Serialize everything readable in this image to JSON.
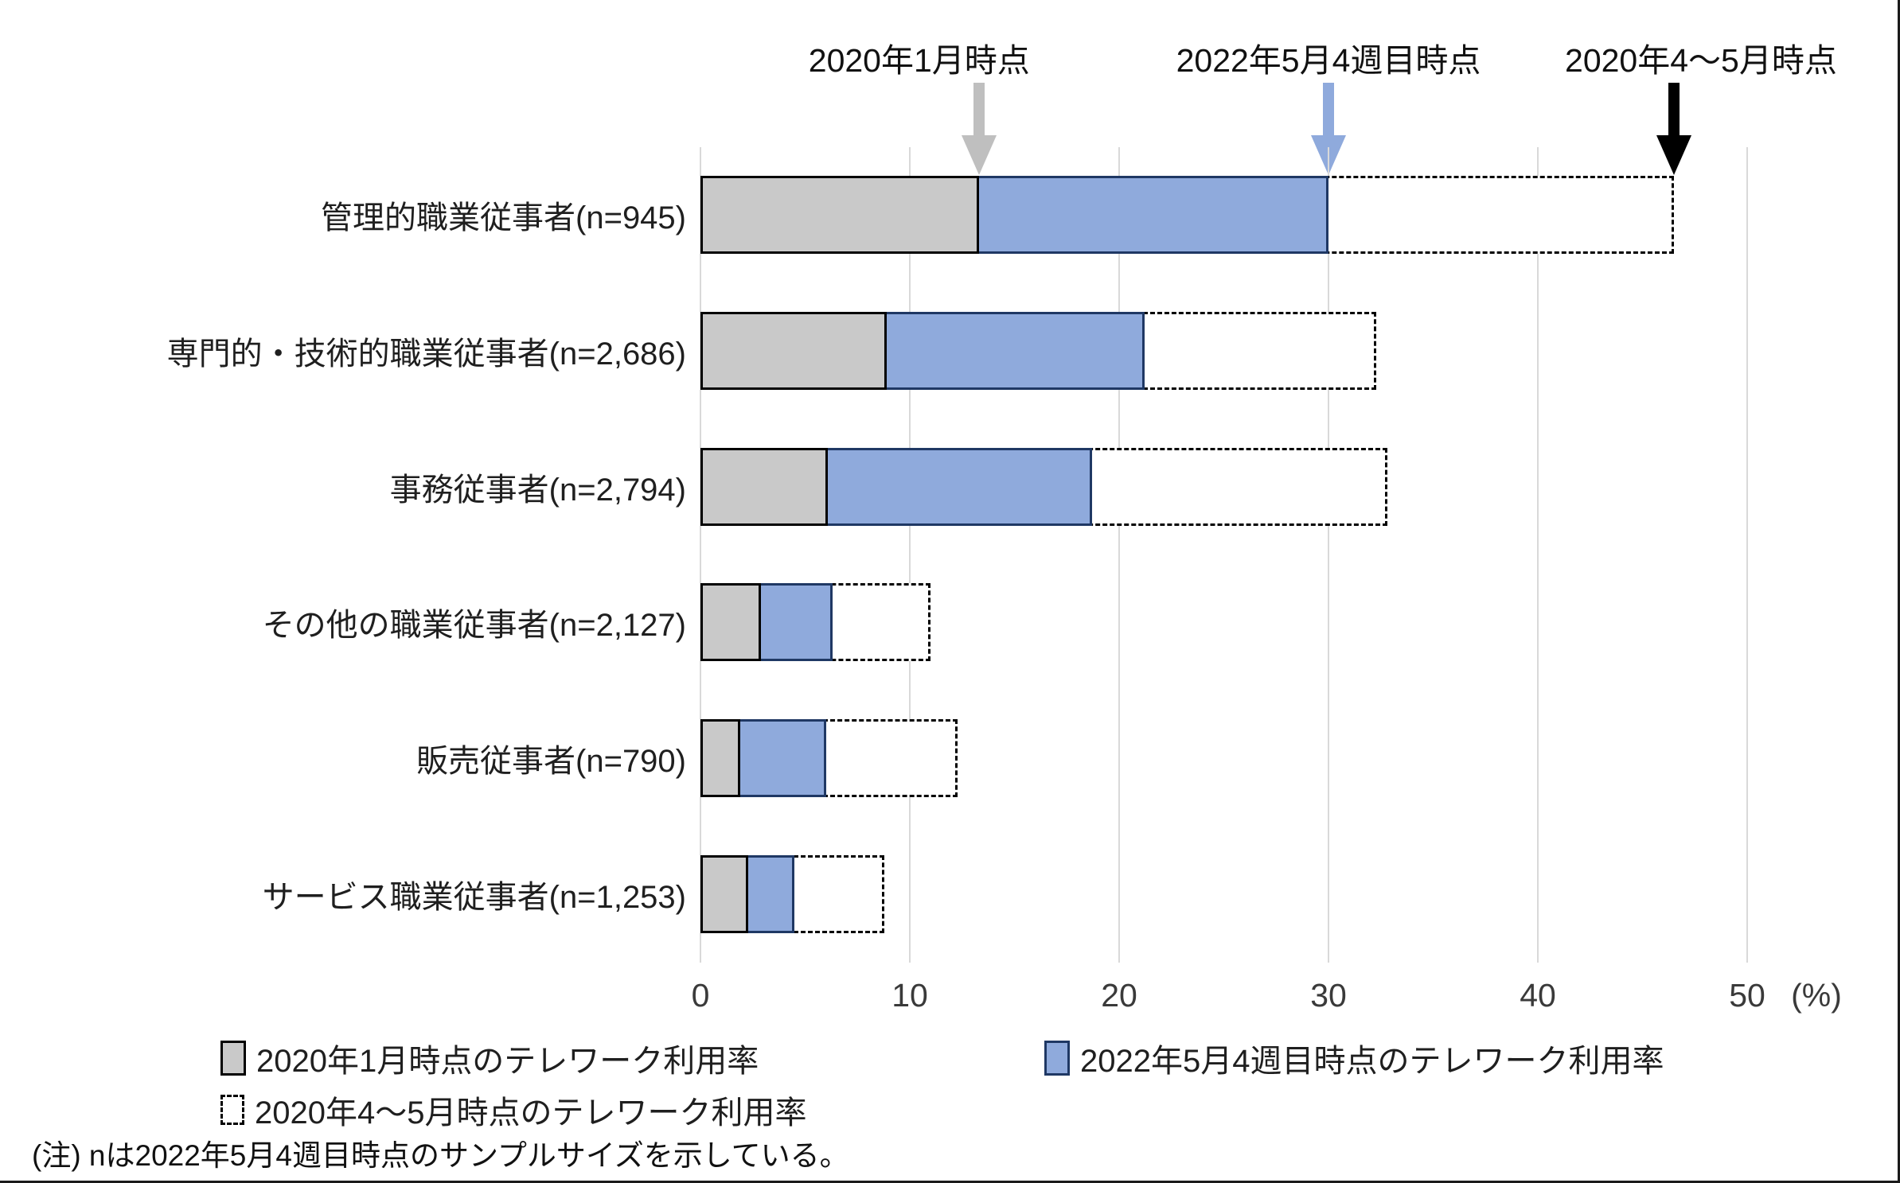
{
  "chart_data": {
    "type": "bar",
    "orientation": "horizontal",
    "title": "",
    "categories": [
      "管理的職業従事者(n=945)",
      "専門的・技術的職業従事者(n=2,686)",
      "事務従事者(n=2,794)",
      "その他の職業従事者(n=2,127)",
      "販売従事者(n=790)",
      "サービス職業従事者(n=1,253)"
    ],
    "series": [
      {
        "key": "jan2020",
        "name": "2020年1月時点のテレワーク利用率",
        "style": "solid",
        "fill": "#C9C9C9",
        "border": "#000000",
        "values": [
          13.3,
          8.9,
          6.1,
          2.9,
          1.9,
          2.3
        ]
      },
      {
        "key": "may2022w4",
        "name": "2022年5月4週目時点のテレワーク利用率",
        "style": "solid",
        "fill": "#8FAADC",
        "border": "#1F3864",
        "values": [
          30.0,
          21.2,
          18.7,
          6.3,
          6.0,
          4.5
        ]
      },
      {
        "key": "aprmay2020",
        "name": "2020年4〜5月時点のテレワーク利用率",
        "style": "dashed-outline",
        "fill": "#FFFFFF",
        "border": "#000000",
        "values": [
          46.5,
          32.3,
          32.8,
          11.0,
          12.3,
          8.8
        ]
      }
    ],
    "x_axis": {
      "ticks": [
        0,
        10,
        20,
        30,
        40,
        50
      ],
      "unit": "(%)",
      "max": 50,
      "grid": true
    },
    "legend_position": "bottom",
    "annotations": [
      {
        "label": "2020年1月時点",
        "x": 13.3,
        "color": "#BFBFBF"
      },
      {
        "label": "2022年5月4週目時点",
        "x": 30.0,
        "color": "#8FAADC"
      },
      {
        "label": "2020年4〜5月時点",
        "x": 46.5,
        "color": "#000000"
      }
    ],
    "note": "(注) nは2022年5月4週目時点のサンプルサイズを示している。"
  }
}
